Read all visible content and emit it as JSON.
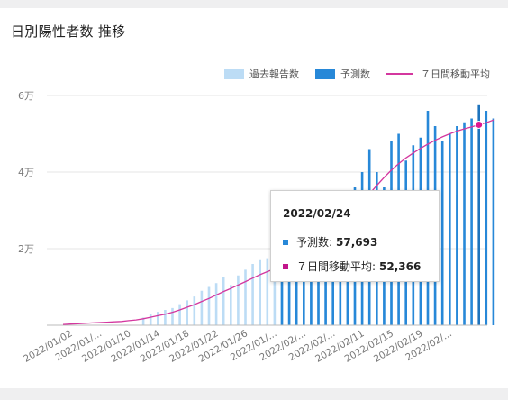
{
  "title": "日別陽性者数 推移",
  "chart_data": {
    "type": "bar",
    "title": "日別陽性者数 推移",
    "legend": [
      {
        "label": "過去報告数",
        "color": "#bcdcf5",
        "kind": "box"
      },
      {
        "label": "予測数",
        "color": "#2788d8",
        "kind": "box"
      },
      {
        "label": "７日間移動平均",
        "color": "#d4379f",
        "kind": "line"
      }
    ],
    "legend_position": "top-right",
    "y_ticks": [
      {
        "value": 20000,
        "label": "2万"
      },
      {
        "value": 40000,
        "label": "4万"
      },
      {
        "value": 60000,
        "label": "6万"
      }
    ],
    "ylim": [
      0,
      60000
    ],
    "grid": true,
    "x_ticks": [
      {
        "index": 1,
        "label": "2022/01/02"
      },
      {
        "index": 5,
        "label": "2022/01/..."
      },
      {
        "index": 9,
        "label": "2022/01/10"
      },
      {
        "index": 13,
        "label": "2022/01/14"
      },
      {
        "index": 17,
        "label": "2022/01/18"
      },
      {
        "index": 21,
        "label": "2022/01/22"
      },
      {
        "index": 25,
        "label": "2022/01/26"
      },
      {
        "index": 29,
        "label": "2022/01/..."
      },
      {
        "index": 33,
        "label": "2022/02/..."
      },
      {
        "index": 37,
        "label": "2022/02/..."
      },
      {
        "index": 41,
        "label": "2022/02/11"
      },
      {
        "index": 45,
        "label": "2022/02/15"
      },
      {
        "index": 49,
        "label": "2022/02/19"
      },
      {
        "index": 53,
        "label": "2022/02/..."
      }
    ],
    "past_reports": [
      0,
      0,
      0,
      0,
      0,
      0,
      0,
      0,
      0,
      0,
      0,
      2000,
      3000,
      3500,
      4000,
      4500,
      5500,
      6500,
      7500,
      9000,
      10000,
      11000,
      12500,
      10500,
      13000,
      14500,
      16000,
      17000,
      17500,
      14000,
      15000,
      16000,
      15500,
      16500,
      17500,
      18500,
      20000,
      17000,
      24000,
      23000,
      27000,
      22000,
      26000,
      28000,
      30000,
      28000,
      30000,
      33000,
      32000,
      34000,
      30000,
      35000,
      36000,
      38000,
      34000
    ],
    "forecast": [
      null,
      null,
      null,
      null,
      null,
      null,
      null,
      null,
      null,
      null,
      null,
      null,
      null,
      null,
      null,
      null,
      null,
      null,
      null,
      null,
      null,
      null,
      null,
      null,
      null,
      null,
      null,
      null,
      null,
      null,
      16000,
      17500,
      19000,
      20000,
      21000,
      22000,
      23000,
      25000,
      28000,
      31000,
      36000,
      40000,
      46000,
      40000,
      36000,
      48000,
      50000,
      43000,
      47000,
      49000,
      56000,
      52000,
      48000,
      50000,
      52000,
      53000,
      54000,
      57693,
      56000,
      54000
    ],
    "moving_average": [
      200,
      300,
      400,
      500,
      600,
      700,
      800,
      900,
      1000,
      1200,
      1400,
      1700,
      2100,
      2500,
      2900,
      3400,
      4000,
      4700,
      5400,
      6200,
      7000,
      7900,
      8800,
      9600,
      10500,
      11400,
      12300,
      13200,
      14000,
      14700,
      15300,
      16000,
      16800,
      17800,
      19000,
      20300,
      21800,
      23500,
      25400,
      27400,
      29700,
      32000,
      34300,
      36500,
      38600,
      40500,
      42200,
      43700,
      45000,
      46200,
      47300,
      48300,
      49200,
      50000,
      50700,
      51300,
      51800,
      52366,
      52900,
      53600
    ],
    "marker_index": 57
  },
  "tooltip": {
    "date": "2022/02/24",
    "forecast_label": "予測数:",
    "forecast_value": "57,693",
    "ma_label": "７日間移動平均:",
    "ma_value": "52,366",
    "forecast_color": "#2788d8",
    "ma_color": "#c2158b"
  }
}
